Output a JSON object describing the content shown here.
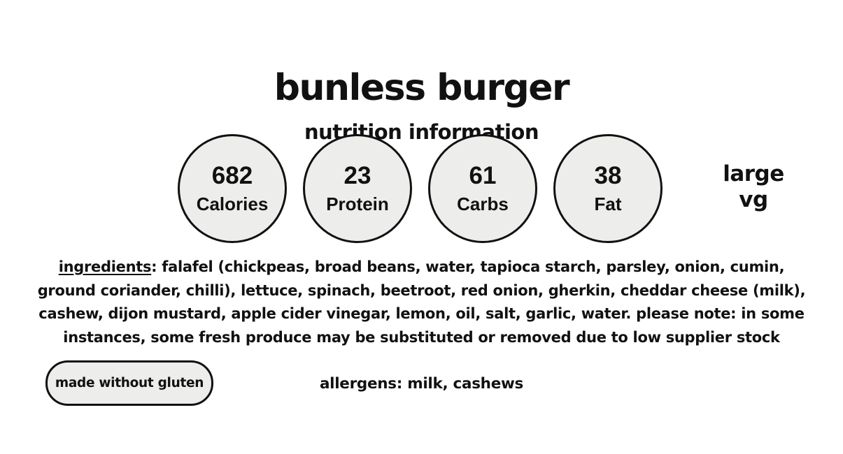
{
  "page": {
    "title": "bunless burger",
    "subtitle": "nutrition information"
  },
  "nutrition": {
    "circles": [
      {
        "value": "682",
        "label": "Calories"
      },
      {
        "value": "23",
        "label": "Protein"
      },
      {
        "value": "61",
        "label": "Carbs"
      },
      {
        "value": "38",
        "label": "Fat"
      }
    ]
  },
  "size_label": {
    "line1": "large",
    "line2": "vg"
  },
  "ingredients": {
    "heading": "ingredients",
    "body": ": falafel (chickpeas, broad beans, water, tapioca starch, parsley, onion, cumin, ground coriander, chilli),  lettuce, spinach, beetroot, red onion, gherkin, cheddar cheese (milk), cashew, dijon mustard, apple cider vinegar, lemon, oil, salt, garlic, water. please note: in some instances, some fresh produce may be substituted or removed due to low supplier stock"
  },
  "badges": {
    "gluten": "made without gluten"
  },
  "allergens_text": "allergens: milk, cashews",
  "colors": {
    "background": "#ffffff",
    "text": "#111111",
    "circle_fill": "#ededeb",
    "circle_border": "#111111"
  }
}
